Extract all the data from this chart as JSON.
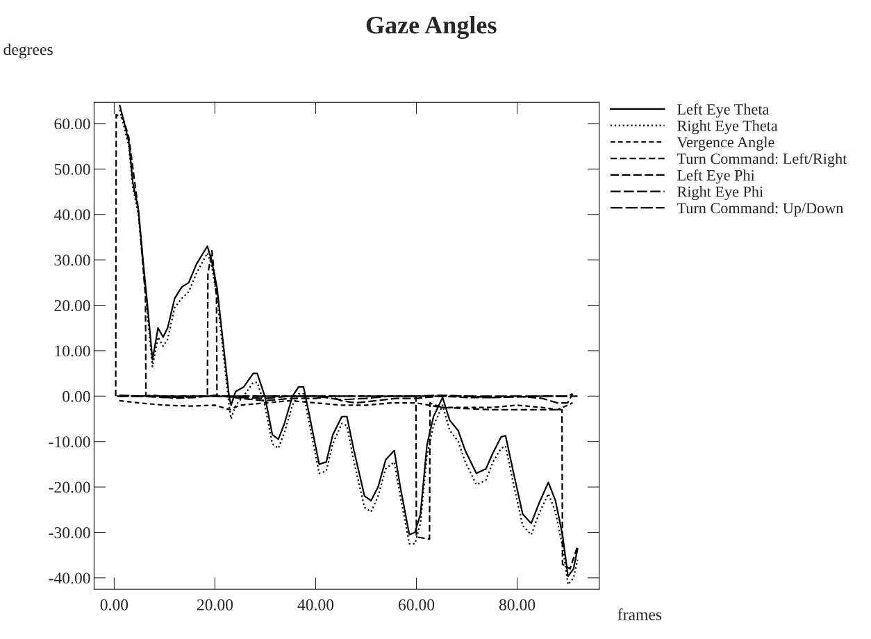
{
  "chart_data": {
    "type": "line",
    "title": "Gaze Angles",
    "xlabel": "frames",
    "ylabel": "degrees",
    "xlim": [
      -4,
      96.3
    ],
    "ylim": [
      -42.5,
      64.7
    ],
    "xticks": [
      {
        "value": 0,
        "label": "0.00"
      },
      {
        "value": 20,
        "label": "20.00"
      },
      {
        "value": 40,
        "label": "40.00"
      },
      {
        "value": 60,
        "label": "60.00"
      },
      {
        "value": 80,
        "label": "80.00"
      }
    ],
    "yticks": [
      {
        "value": -40,
        "label": "-40.00"
      },
      {
        "value": -30,
        "label": "-30.00"
      },
      {
        "value": -20,
        "label": "-20.00"
      },
      {
        "value": -10,
        "label": "-10.00"
      },
      {
        "value": 0,
        "label": "0.00"
      },
      {
        "value": 10,
        "label": "10.00"
      },
      {
        "value": 20,
        "label": "20.00"
      },
      {
        "value": 30,
        "label": "30.00"
      },
      {
        "value": 40,
        "label": "40.00"
      },
      {
        "value": 50,
        "label": "50.00"
      },
      {
        "value": 60,
        "label": "60.00"
      }
    ],
    "grid": false,
    "legend": "top right",
    "marker": "none",
    "series": [
      {
        "name": "Left Eye Theta",
        "color": "#000000",
        "line_style": "solid",
        "x": [
          1.1,
          1.8,
          2.9,
          3.7,
          4.8,
          5.8,
          6.6,
          7.6,
          8.7,
          9.7,
          10.6,
          12.0,
          13.4,
          14.8,
          16.3,
          18.5,
          19.3,
          20.4,
          22.8,
          23.2,
          24.1,
          25.7,
          27.6,
          28.4,
          29.9,
          31.4,
          32.6,
          33.8,
          35.4,
          36.6,
          37.6,
          38.8,
          40.7,
          42.1,
          43.4,
          45.2,
          46.2,
          47.6,
          49.7,
          51.0,
          52.4,
          53.9,
          55.6,
          56.8,
          58.6,
          59.7,
          60.8,
          62.1,
          63.4,
          65.2,
          66.6,
          68.3,
          69.7,
          71.9,
          73.8,
          75.2,
          76.8,
          77.7,
          79.3,
          81.1,
          82.8,
          84.3,
          86.2,
          87.6,
          89.0,
          90.1,
          91.2,
          92.0
        ],
        "values": [
          64,
          61,
          56,
          47,
          41,
          29,
          20,
          8,
          15,
          13,
          15,
          21.5,
          24,
          25,
          29,
          33,
          30,
          24,
          0,
          -2,
          1,
          2,
          5,
          5,
          0,
          -8.5,
          -9.5,
          -6,
          0,
          2,
          2,
          -4.5,
          -15,
          -14.5,
          -8.5,
          -4.5,
          -4.5,
          -12,
          -22,
          -23,
          -20,
          -14,
          -12,
          -20,
          -30.5,
          -30,
          -26,
          -10.7,
          -4.5,
          -0.3,
          -5.3,
          -7.6,
          -12,
          -17,
          -16,
          -12.5,
          -9,
          -8.7,
          -17,
          -26,
          -28,
          -23.7,
          -19,
          -23,
          -30.5,
          -39.7,
          -38,
          -33.6
        ]
      },
      {
        "name": "Right Eye Theta",
        "color": "#000000",
        "line_style": "dotted",
        "x": [
          1.1,
          1.8,
          2.9,
          3.7,
          4.8,
          5.8,
          6.6,
          7.6,
          8.7,
          9.7,
          10.6,
          12.0,
          13.4,
          14.8,
          16.3,
          18.5,
          19.3,
          20.4,
          22.8,
          23.2,
          24.1,
          25.7,
          27.6,
          28.4,
          29.9,
          31.4,
          32.6,
          33.8,
          35.4,
          36.6,
          37.6,
          38.8,
          40.7,
          42.1,
          43.4,
          45.2,
          46.2,
          47.6,
          49.7,
          51.0,
          52.4,
          53.9,
          55.6,
          56.8,
          58.6,
          59.7,
          60.8,
          62.1,
          63.4,
          65.2,
          66.6,
          68.3,
          69.7,
          71.9,
          73.8,
          75.2,
          76.8,
          77.7,
          79.3,
          81.1,
          82.8,
          84.3,
          86.2,
          87.6,
          89.0,
          90.1,
          91.2,
          92.0
        ],
        "values": [
          63,
          60,
          55,
          46,
          40,
          28,
          18,
          6.5,
          13,
          11,
          12.5,
          19.5,
          21.5,
          23,
          27,
          31.5,
          29,
          22,
          -2,
          -5,
          -2,
          0,
          3,
          3,
          -2,
          -10.5,
          -11.5,
          -8,
          -2,
          0.5,
          0.5,
          -6.5,
          -17,
          -16.5,
          -10.5,
          -6,
          -6.5,
          -14.5,
          -24.5,
          -25.5,
          -22,
          -16,
          -14.5,
          -22,
          -32.5,
          -32.5,
          -28,
          -13,
          -6.5,
          -2,
          -7.5,
          -10,
          -14.5,
          -19.5,
          -18.5,
          -14.5,
          -11.5,
          -11,
          -19.5,
          -28.5,
          -30.5,
          -26,
          -21.5,
          -25.5,
          -33,
          -41.5,
          -40,
          -36
        ]
      },
      {
        "name": "Vergence Angle",
        "color": "#000000",
        "line_style": "dashed",
        "x": [
          1,
          5,
          10,
          15,
          20,
          23,
          25,
          30,
          35,
          40,
          45,
          50,
          55,
          60,
          65,
          70,
          75,
          80,
          85,
          88,
          91
        ],
        "values": [
          -1,
          -1.5,
          -2,
          -2.2,
          -2,
          -3,
          -2,
          -1.5,
          -1,
          -1.5,
          -2,
          -2,
          -1.5,
          -1.5,
          -2.5,
          -2.5,
          -2.5,
          -2,
          -2.5,
          -3,
          -1.5
        ]
      },
      {
        "name": "Turn Command: Left/Right",
        "color": "#000000",
        "line_style": "dashed",
        "x": [
          0.3,
          0.4,
          1.8,
          2.9,
          4.8,
          6.2,
          6.3,
          18.5,
          18.6,
          19.4,
          20.3,
          20.4,
          59.9,
          60.0,
          62.6,
          62.7,
          65,
          75,
          85,
          88.9,
          89.0,
          90.5,
          92.0
        ],
        "values": [
          0,
          62,
          61,
          57,
          41,
          22,
          0,
          0,
          27,
          32,
          22,
          0,
          0,
          -31,
          -31.5,
          -1.5,
          -2.5,
          -3,
          -3,
          -3,
          -37,
          -38,
          -33
        ]
      },
      {
        "name": "Left Eye Phi",
        "color": "#000000",
        "line_style": "dashed",
        "x": [
          1,
          5,
          8,
          12,
          16,
          20,
          22,
          25,
          30,
          35,
          40,
          43,
          45,
          48,
          52,
          56,
          60,
          65,
          70,
          75,
          80,
          85,
          88,
          90,
          91
        ],
        "values": [
          0,
          0,
          0.2,
          -0.5,
          -0.3,
          0.2,
          0,
          -0.5,
          -1,
          -0.5,
          -0.5,
          0,
          -1,
          -1.5,
          -1,
          -0.5,
          -0.5,
          0,
          -0.3,
          -0.3,
          0,
          -0.5,
          -1.5,
          -1.5,
          0.5
        ]
      },
      {
        "name": "Right Eye Phi",
        "color": "#000000",
        "line_style": "dashed",
        "x": [
          1,
          5,
          10,
          15,
          20,
          25,
          30,
          35,
          40,
          45,
          50,
          55,
          60,
          65,
          70,
          75,
          80,
          85,
          90,
          91
        ],
        "values": [
          0.2,
          0,
          -0.3,
          -0.2,
          0,
          -0.3,
          -0.5,
          0,
          0,
          -0.8,
          -0.5,
          0,
          0,
          0.2,
          0,
          -0.3,
          -0.2,
          0,
          0,
          0.5
        ]
      },
      {
        "name": "Turn Command: Up/Down",
        "color": "#000000",
        "line_style": "dashed",
        "x": [
          0.5,
          92
        ],
        "values": [
          0,
          0
        ]
      }
    ]
  }
}
